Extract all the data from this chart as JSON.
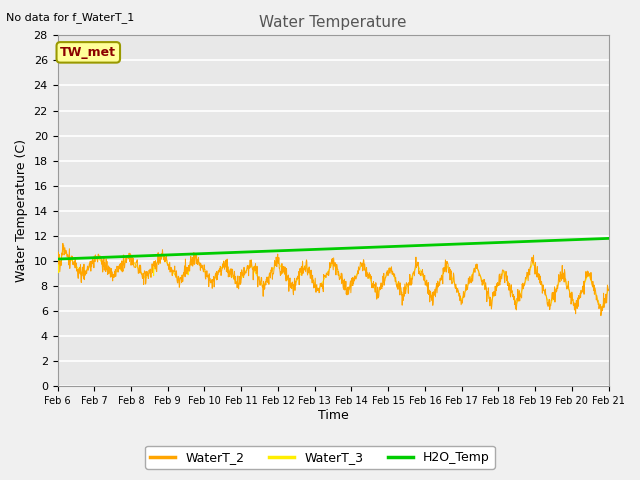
{
  "title": "Water Temperature",
  "ylabel": "Water Temperature (C)",
  "xlabel": "Time",
  "note": "No data for f_WaterT_1",
  "legend_label": "TW_met",
  "ylim": [
    0,
    28
  ],
  "tick_labels": [
    "Feb 6",
    "Feb 7",
    "Feb 8",
    "Feb 9",
    "Feb 10",
    "Feb 11",
    "Feb 12",
    "Feb 13",
    "Feb 14",
    "Feb 15",
    "Feb 16",
    "Feb 17",
    "Feb 18",
    "Feb 19",
    "Feb 20",
    "Feb 21"
  ],
  "bg_color": "#f0f0f0",
  "plot_bg_color": "#e8e8e8",
  "grid_color": "#ffffff",
  "WaterT2_color": "#FFA500",
  "WaterT3_color": "#FFEE00",
  "H2O_color": "#00CC00",
  "legend_labels": [
    "WaterT_2",
    "WaterT_3",
    "H2O_Temp"
  ],
  "legend_colors": [
    "#FFA500",
    "#FFEE00",
    "#00CC00"
  ]
}
